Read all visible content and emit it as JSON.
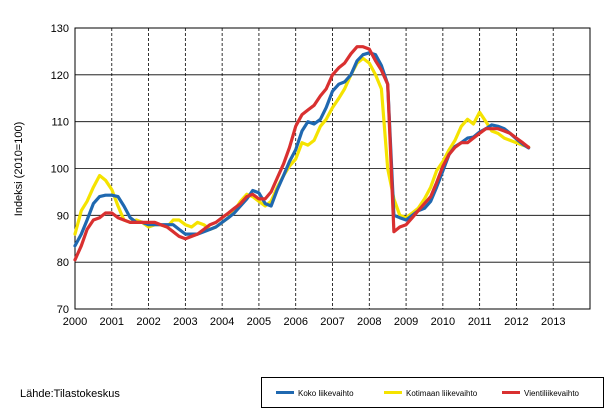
{
  "chart_data": {
    "type": "line",
    "ylabel": "Indeksi (2010=100)",
    "ylim": [
      70,
      130
    ],
    "yticks": [
      "70",
      "80",
      "90",
      "100",
      "110",
      "120",
      "130"
    ],
    "xlim": [
      2000,
      2014
    ],
    "xticks": [
      "2000",
      "2001",
      "2002",
      "2003",
      "2004",
      "2005",
      "2006",
      "2007",
      "2008",
      "2009",
      "2010",
      "2011",
      "2012",
      "2013"
    ],
    "grid": "vertical dashed at years, horizontal solid",
    "legend_position": "bottom-right",
    "series": [
      {
        "name": "Koko liikevaihto",
        "color": "#1f68b0",
        "points": [
          [
            2000.0,
            83.5
          ],
          [
            2000.17,
            86
          ],
          [
            2000.33,
            89
          ],
          [
            2000.5,
            92.5
          ],
          [
            2000.67,
            94
          ],
          [
            2000.83,
            94.3
          ],
          [
            2001.0,
            94.3
          ],
          [
            2001.17,
            94
          ],
          [
            2001.33,
            92
          ],
          [
            2001.5,
            89.5
          ],
          [
            2001.67,
            88.5
          ],
          [
            2001.83,
            88.5
          ],
          [
            2002.0,
            88
          ],
          [
            2002.17,
            88
          ],
          [
            2002.33,
            88
          ],
          [
            2002.5,
            88
          ],
          [
            2002.67,
            88
          ],
          [
            2002.83,
            87
          ],
          [
            2003.0,
            86
          ],
          [
            2003.17,
            86
          ],
          [
            2003.33,
            86
          ],
          [
            2003.5,
            86.5
          ],
          [
            2003.67,
            87
          ],
          [
            2003.83,
            87.5
          ],
          [
            2004.0,
            88.5
          ],
          [
            2004.17,
            89.5
          ],
          [
            2004.33,
            90.5
          ],
          [
            2004.5,
            92
          ],
          [
            2004.67,
            93.5
          ],
          [
            2004.83,
            95.3
          ],
          [
            2005.0,
            94.8
          ],
          [
            2005.17,
            92.5
          ],
          [
            2005.33,
            92
          ],
          [
            2005.5,
            95.5
          ],
          [
            2005.67,
            98.5
          ],
          [
            2005.83,
            101.5
          ],
          [
            2006.0,
            104
          ],
          [
            2006.17,
            108
          ],
          [
            2006.33,
            110
          ],
          [
            2006.5,
            109.5
          ],
          [
            2006.67,
            110.5
          ],
          [
            2006.83,
            113
          ],
          [
            2007.0,
            116.5
          ],
          [
            2007.17,
            118
          ],
          [
            2007.33,
            118.5
          ],
          [
            2007.5,
            120
          ],
          [
            2007.67,
            123
          ],
          [
            2007.83,
            124.3
          ],
          [
            2008.0,
            124.7
          ],
          [
            2008.17,
            124.3
          ],
          [
            2008.33,
            122
          ],
          [
            2008.5,
            118
          ],
          [
            2008.67,
            90
          ],
          [
            2008.83,
            89.5
          ],
          [
            2009.0,
            89
          ],
          [
            2009.17,
            90
          ],
          [
            2009.33,
            91
          ],
          [
            2009.5,
            91.5
          ],
          [
            2009.67,
            93
          ],
          [
            2009.83,
            96
          ],
          [
            2010.0,
            99.5
          ],
          [
            2010.17,
            103
          ],
          [
            2010.33,
            104.7
          ],
          [
            2010.5,
            105.5
          ],
          [
            2010.67,
            106.5
          ],
          [
            2010.83,
            106.7
          ],
          [
            2011.0,
            107.8
          ],
          [
            2011.17,
            108.5
          ],
          [
            2011.33,
            109.3
          ],
          [
            2011.5,
            109
          ],
          [
            2011.67,
            108.5
          ],
          [
            2011.83,
            107.5
          ],
          [
            2012.0,
            106.3
          ],
          [
            2012.17,
            105.2
          ],
          [
            2012.33,
            104.4
          ]
        ]
      },
      {
        "name": "Kotimaan liikevaihto",
        "color": "#f5e300",
        "points": [
          [
            2000.0,
            86
          ],
          [
            2000.17,
            91
          ],
          [
            2000.33,
            93
          ],
          [
            2000.5,
            96
          ],
          [
            2000.67,
            98.5
          ],
          [
            2000.83,
            97.5
          ],
          [
            2001.0,
            95.5
          ],
          [
            2001.17,
            92
          ],
          [
            2001.33,
            89
          ],
          [
            2001.5,
            88.5
          ],
          [
            2001.67,
            89
          ],
          [
            2001.83,
            88.5
          ],
          [
            2002.0,
            87.5
          ],
          [
            2002.17,
            88
          ],
          [
            2002.33,
            88
          ],
          [
            2002.5,
            87.5
          ],
          [
            2002.67,
            89
          ],
          [
            2002.83,
            89
          ],
          [
            2003.0,
            88
          ],
          [
            2003.17,
            87.5
          ],
          [
            2003.33,
            88.5
          ],
          [
            2003.5,
            88
          ],
          [
            2003.67,
            87
          ],
          [
            2003.83,
            87.5
          ],
          [
            2004.0,
            88.5
          ],
          [
            2004.17,
            89.5
          ],
          [
            2004.33,
            91
          ],
          [
            2004.5,
            93
          ],
          [
            2004.67,
            94.5
          ],
          [
            2004.83,
            94
          ],
          [
            2005.0,
            93
          ],
          [
            2005.17,
            92
          ],
          [
            2005.33,
            93
          ],
          [
            2005.5,
            96
          ],
          [
            2005.67,
            98.5
          ],
          [
            2005.83,
            100.5
          ],
          [
            2006.0,
            102
          ],
          [
            2006.17,
            105.5
          ],
          [
            2006.33,
            105
          ],
          [
            2006.5,
            106
          ],
          [
            2006.67,
            109
          ],
          [
            2006.83,
            110.5
          ],
          [
            2007.0,
            113
          ],
          [
            2007.17,
            115
          ],
          [
            2007.33,
            117
          ],
          [
            2007.5,
            120
          ],
          [
            2007.67,
            122.5
          ],
          [
            2007.83,
            123.5
          ],
          [
            2008.0,
            122.5
          ],
          [
            2008.17,
            120
          ],
          [
            2008.33,
            117
          ],
          [
            2008.5,
            100
          ],
          [
            2008.67,
            93.5
          ],
          [
            2008.83,
            90
          ],
          [
            2009.0,
            89.5
          ],
          [
            2009.17,
            90.5
          ],
          [
            2009.33,
            91.5
          ],
          [
            2009.5,
            93.5
          ],
          [
            2009.67,
            96
          ],
          [
            2009.83,
            99.5
          ],
          [
            2010.0,
            101.5
          ],
          [
            2010.17,
            104
          ],
          [
            2010.33,
            106
          ],
          [
            2010.5,
            109
          ],
          [
            2010.67,
            110.5
          ],
          [
            2010.83,
            109.5
          ],
          [
            2011.0,
            112
          ],
          [
            2011.17,
            110
          ],
          [
            2011.33,
            108
          ],
          [
            2011.5,
            107.5
          ],
          [
            2011.67,
            106.5
          ],
          [
            2011.83,
            106
          ],
          [
            2012.0,
            105.5
          ],
          [
            2012.17,
            105
          ],
          [
            2012.33,
            104.6
          ]
        ]
      },
      {
        "name": "Vientiliikevaihto",
        "color": "#d93030",
        "points": [
          [
            2000.0,
            80.5
          ],
          [
            2000.17,
            83.5
          ],
          [
            2000.33,
            87
          ],
          [
            2000.5,
            89
          ],
          [
            2000.67,
            89.5
          ],
          [
            2000.83,
            90.5
          ],
          [
            2001.0,
            90.5
          ],
          [
            2001.17,
            89.5
          ],
          [
            2001.33,
            89
          ],
          [
            2001.5,
            88.5
          ],
          [
            2001.67,
            88.5
          ],
          [
            2001.83,
            88.5
          ],
          [
            2002.0,
            88.5
          ],
          [
            2002.17,
            88.5
          ],
          [
            2002.33,
            88
          ],
          [
            2002.5,
            87.5
          ],
          [
            2002.67,
            86.5
          ],
          [
            2002.83,
            85.5
          ],
          [
            2003.0,
            85
          ],
          [
            2003.17,
            85.5
          ],
          [
            2003.33,
            86
          ],
          [
            2003.5,
            87
          ],
          [
            2003.67,
            88
          ],
          [
            2003.83,
            88.5
          ],
          [
            2004.0,
            89.5
          ],
          [
            2004.17,
            90.5
          ],
          [
            2004.33,
            91.5
          ],
          [
            2004.5,
            92.5
          ],
          [
            2004.67,
            94
          ],
          [
            2004.83,
            94.5
          ],
          [
            2005.0,
            93.5
          ],
          [
            2005.17,
            93.5
          ],
          [
            2005.33,
            95
          ],
          [
            2005.5,
            98
          ],
          [
            2005.67,
            101
          ],
          [
            2005.83,
            104.5
          ],
          [
            2006.0,
            109
          ],
          [
            2006.17,
            111.5
          ],
          [
            2006.33,
            112.5
          ],
          [
            2006.5,
            113.5
          ],
          [
            2006.67,
            115.5
          ],
          [
            2006.83,
            117
          ],
          [
            2007.0,
            120
          ],
          [
            2007.17,
            121.5
          ],
          [
            2007.33,
            122.5
          ],
          [
            2007.5,
            124.5
          ],
          [
            2007.67,
            126
          ],
          [
            2007.83,
            126
          ],
          [
            2008.0,
            125.5
          ],
          [
            2008.17,
            123
          ],
          [
            2008.33,
            121
          ],
          [
            2008.5,
            118
          ],
          [
            2008.67,
            86.5
          ],
          [
            2008.83,
            87.5
          ],
          [
            2009.0,
            88
          ],
          [
            2009.17,
            89.5
          ],
          [
            2009.33,
            91
          ],
          [
            2009.5,
            92.5
          ],
          [
            2009.67,
            94
          ],
          [
            2009.83,
            97
          ],
          [
            2010.0,
            100.5
          ],
          [
            2010.17,
            103
          ],
          [
            2010.33,
            104.5
          ],
          [
            2010.5,
            105.5
          ],
          [
            2010.67,
            105.5
          ],
          [
            2010.83,
            106.5
          ],
          [
            2011.0,
            107.5
          ],
          [
            2011.17,
            108.5
          ],
          [
            2011.33,
            108.5
          ],
          [
            2011.5,
            108.5
          ],
          [
            2011.67,
            108
          ],
          [
            2011.83,
            107.5
          ],
          [
            2012.0,
            106.5
          ],
          [
            2012.17,
            105.5
          ],
          [
            2012.33,
            104.5
          ]
        ]
      }
    ]
  },
  "source_label": "Lähde:Tilastokeskus",
  "legend": [
    {
      "label": "Koko liikevaihto",
      "color": "#1f68b0"
    },
    {
      "label": "Kotimaan liikevaihto",
      "color": "#f5e300"
    },
    {
      "label": "Vientiliikevaihto",
      "color": "#d93030"
    }
  ]
}
